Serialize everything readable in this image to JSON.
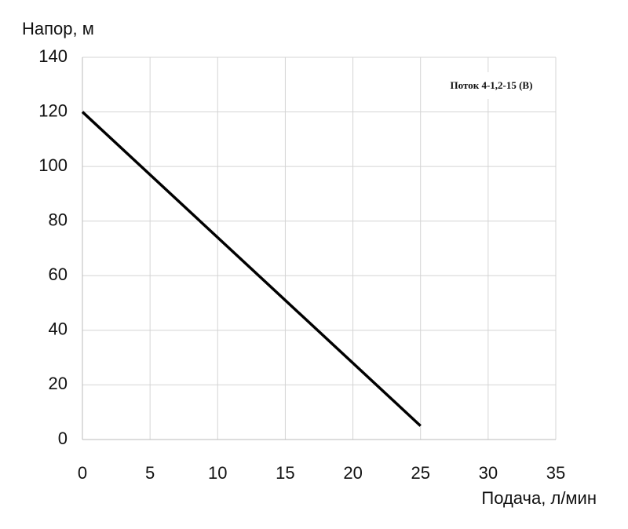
{
  "chart_data": {
    "type": "line",
    "y_label": "Напор, м",
    "x_label": "Подача, л/мин",
    "x": [
      0,
      25
    ],
    "series": [
      {
        "name": "Поток 4-1,2-15 (В)",
        "color": "#000000",
        "values": [
          120,
          5
        ]
      }
    ],
    "xlim": [
      0,
      35
    ],
    "xticks": [
      0,
      5,
      10,
      15,
      20,
      25,
      30,
      35
    ],
    "ylim": [
      0,
      140
    ],
    "yticks": [
      0,
      20,
      40,
      60,
      80,
      100,
      120,
      140
    ],
    "grid": true,
    "legend": "upper right"
  }
}
